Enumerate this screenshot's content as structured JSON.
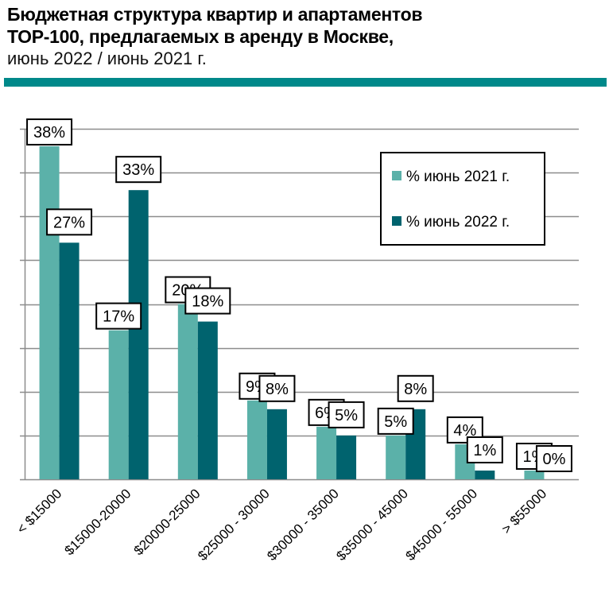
{
  "title": {
    "line1": "Бюджетная структура квартир и апартаментов",
    "line2": "ТОР-100, предлагаемых в аренду в Москве,",
    "line3": "июнь 2022 / июнь 2021 г."
  },
  "colors": {
    "title_bar": "#00898A",
    "series_2021": "#5BB1A9",
    "series_2022": "#00636E",
    "grid": "#8C8C8C"
  },
  "chart_data": {
    "type": "bar",
    "title": "Бюджетная структура квартир и апартаментов ТОР-100, предлагаемых в аренду в Москве, июнь 2022 / июнь 2021 г.",
    "xlabel": "",
    "ylabel": "",
    "ylim": [
      0,
      40
    ],
    "y_gridline_step": 5,
    "y_tick_labels_shown": false,
    "grid": true,
    "legend_position": "top-right",
    "categories": [
      "< $15000",
      "$15000-20000",
      "$20000-25000",
      "$25000 - 30000",
      "$30000 - 35000",
      "$35000 - 45000",
      "$45000 - 55000",
      "> $55000"
    ],
    "series": [
      {
        "name": "% июнь 2021 г.",
        "values": [
          38,
          17,
          20,
          9,
          6,
          5,
          4,
          1
        ],
        "labels": [
          "38%",
          "17%",
          "20%",
          "9%",
          "6%",
          "5%",
          "4%",
          "1%"
        ]
      },
      {
        "name": "% июнь 2022 г.",
        "values": [
          27,
          33,
          18,
          8,
          5,
          8,
          1,
          0
        ],
        "labels": [
          "27%",
          "33%",
          "18%",
          "8%",
          "5%",
          "8%",
          "1%",
          "0%"
        ]
      }
    ]
  }
}
